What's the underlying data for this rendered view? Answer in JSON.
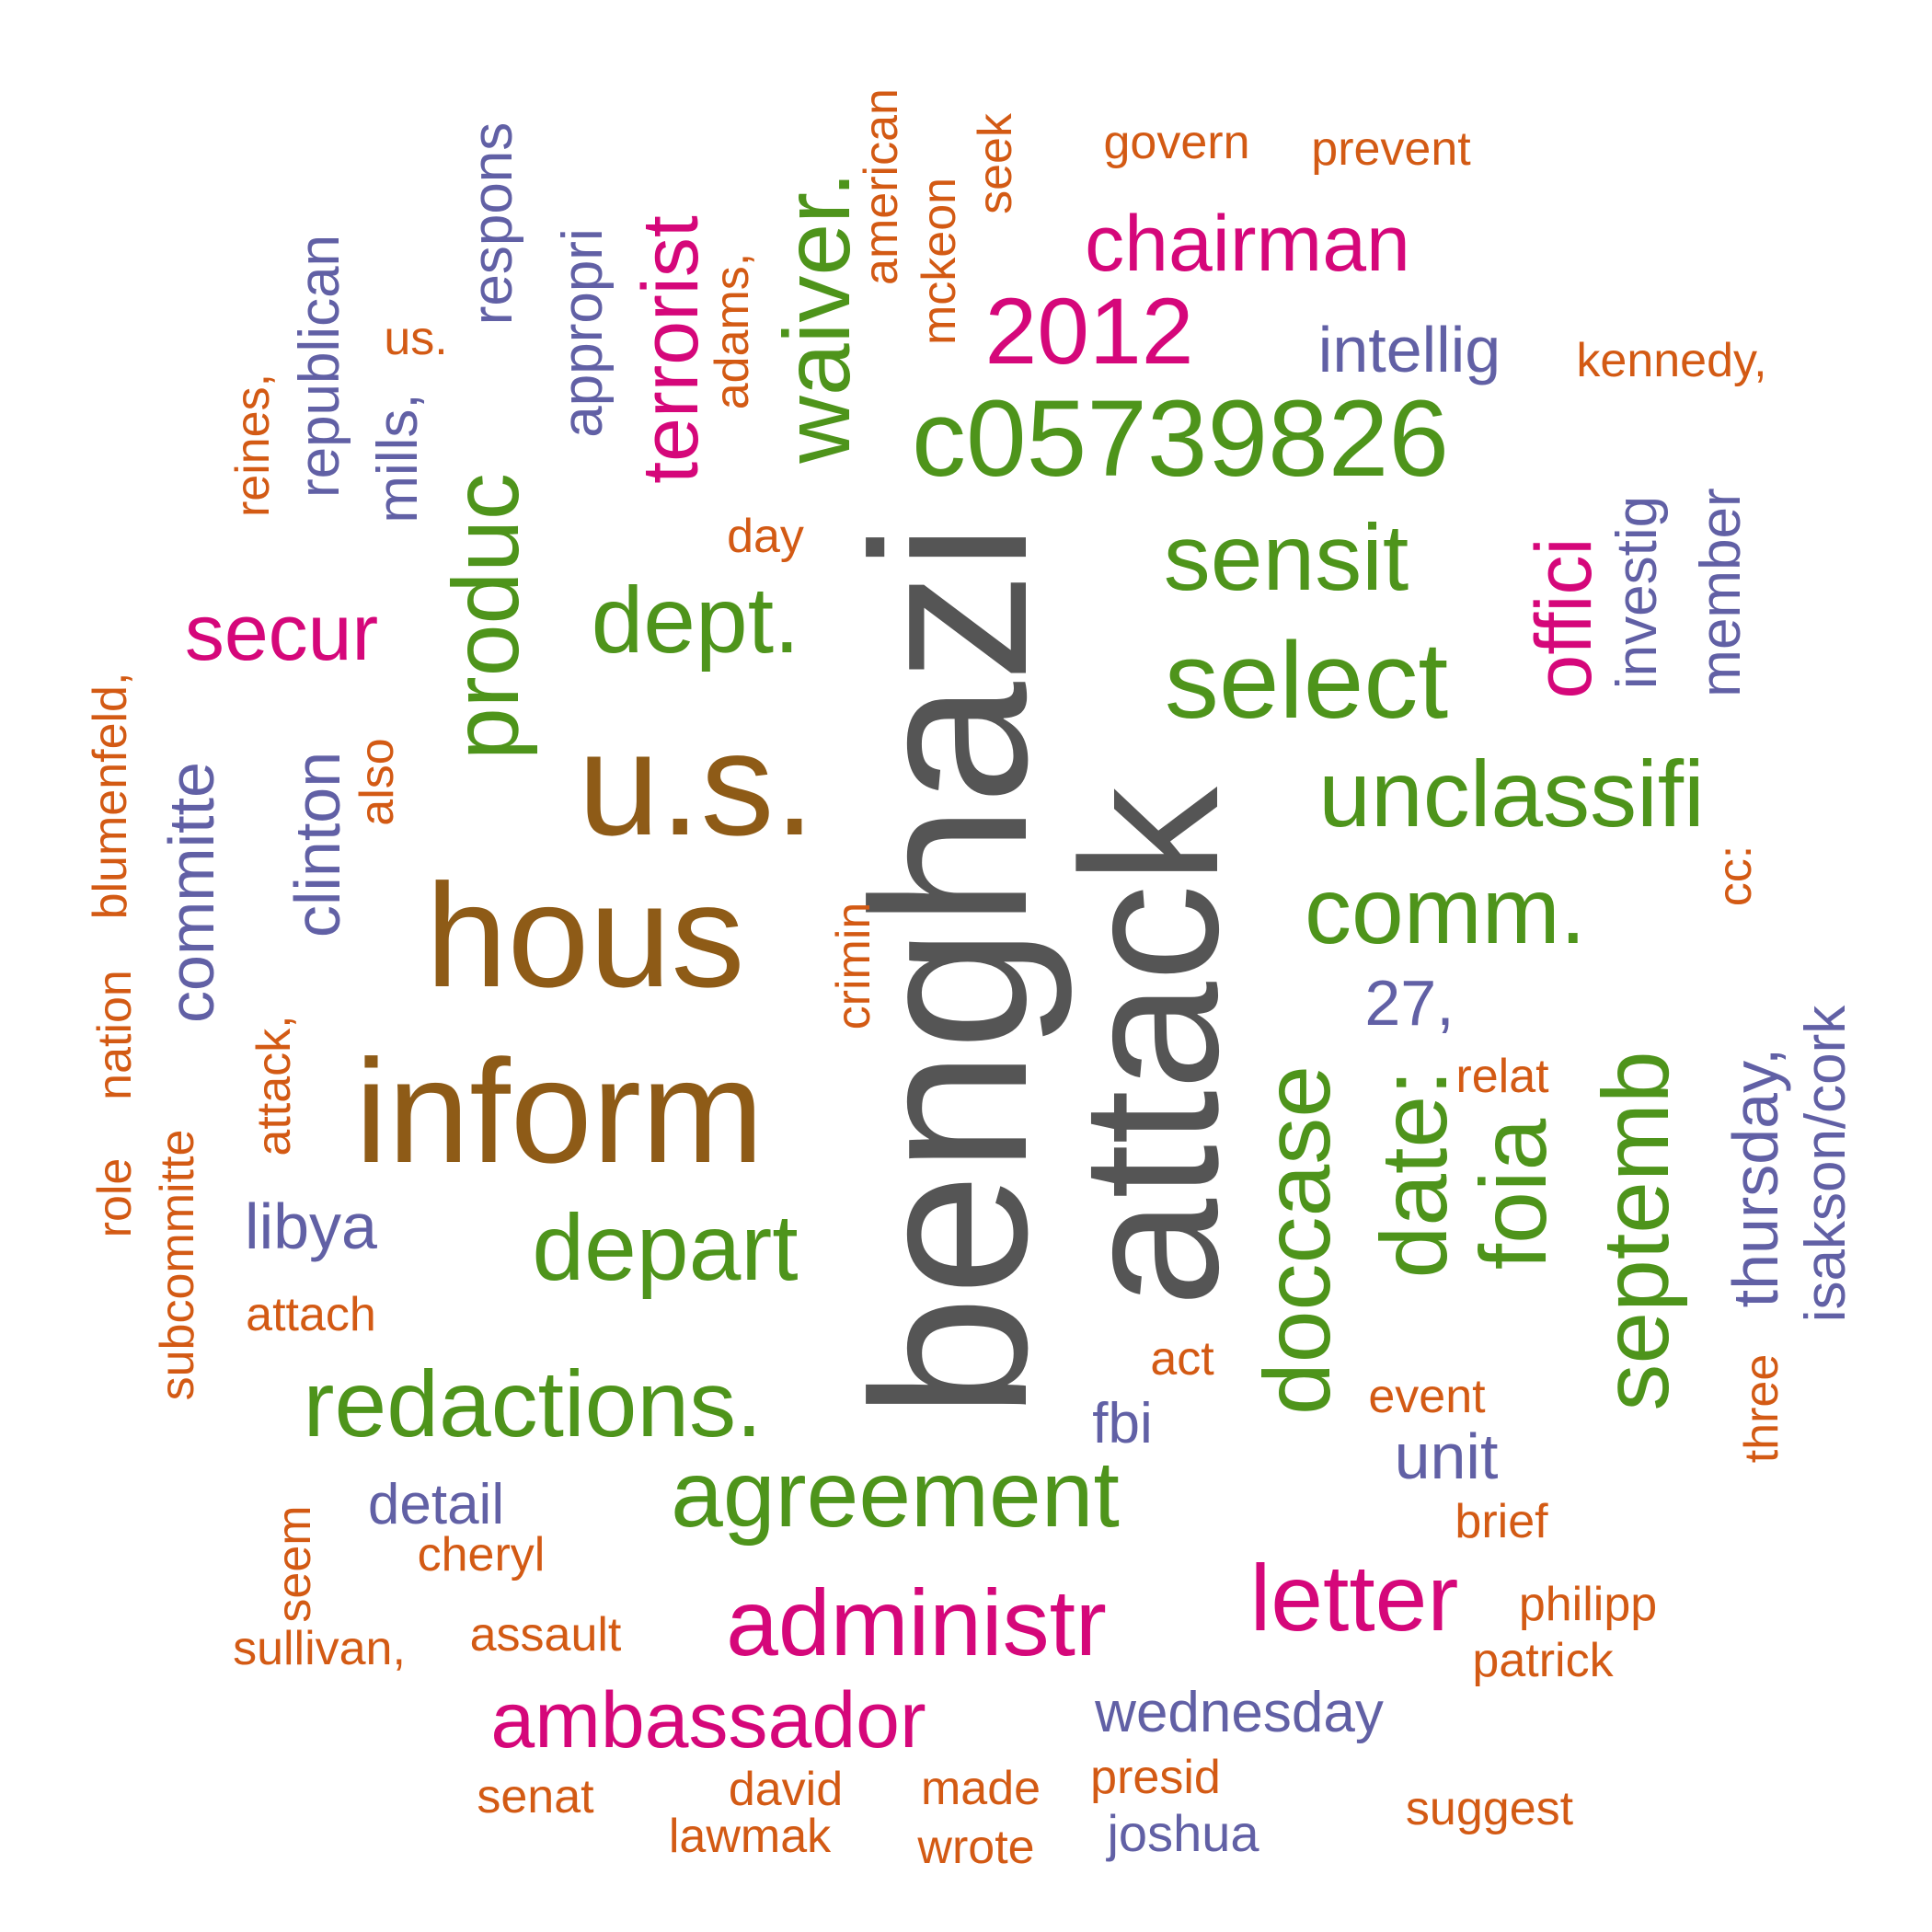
{
  "colors": {
    "gray": "#555555",
    "brown": "#8E5B17",
    "green": "#4E941B",
    "pink": "#D5077A",
    "purple": "#6160A5",
    "orange": "#D35A14"
  },
  "words": [
    {
      "text": "benghazi",
      "color": "gray"
    },
    {
      "text": "attack",
      "color": "gray"
    },
    {
      "text": "u.s.",
      "color": "brown"
    },
    {
      "text": "hous",
      "color": "brown"
    },
    {
      "text": "inform",
      "color": "brown"
    },
    {
      "text": "waiver.",
      "color": "green"
    },
    {
      "text": "c05739826",
      "color": "green"
    },
    {
      "text": "sensit",
      "color": "green"
    },
    {
      "text": "select",
      "color": "green"
    },
    {
      "text": "unclassifi",
      "color": "green"
    },
    {
      "text": "comm.",
      "color": "green"
    },
    {
      "text": "produc",
      "color": "green"
    },
    {
      "text": "dept.",
      "color": "green"
    },
    {
      "text": "depart",
      "color": "green"
    },
    {
      "text": "redactions.",
      "color": "green"
    },
    {
      "text": "agreement",
      "color": "green"
    },
    {
      "text": "doccase",
      "color": "green"
    },
    {
      "text": "date:",
      "color": "green"
    },
    {
      "text": "foia",
      "color": "green"
    },
    {
      "text": "septemb",
      "color": "green"
    },
    {
      "text": "terrorist",
      "color": "pink"
    },
    {
      "text": "chairman",
      "color": "pink"
    },
    {
      "text": "2012",
      "color": "pink"
    },
    {
      "text": "secur",
      "color": "pink"
    },
    {
      "text": "offici",
      "color": "pink"
    },
    {
      "text": "administr",
      "color": "pink"
    },
    {
      "text": "letter",
      "color": "pink"
    },
    {
      "text": "ambassador",
      "color": "pink"
    },
    {
      "text": "intellig",
      "color": "purple"
    },
    {
      "text": "respons",
      "color": "purple"
    },
    {
      "text": "republican",
      "color": "purple"
    },
    {
      "text": "mills,",
      "color": "purple"
    },
    {
      "text": "appropri",
      "color": "purple"
    },
    {
      "text": "investig",
      "color": "purple"
    },
    {
      "text": "member",
      "color": "purple"
    },
    {
      "text": "committe",
      "color": "purple"
    },
    {
      "text": "clinton",
      "color": "purple"
    },
    {
      "text": "27,",
      "color": "purple"
    },
    {
      "text": "thursday,",
      "color": "purple"
    },
    {
      "text": "isakson/cork",
      "color": "purple"
    },
    {
      "text": "libya",
      "color": "purple"
    },
    {
      "text": "unit",
      "color": "purple"
    },
    {
      "text": "fbi",
      "color": "purple"
    },
    {
      "text": "detail",
      "color": "purple"
    },
    {
      "text": "wednesday",
      "color": "purple"
    },
    {
      "text": "joshua",
      "color": "purple"
    },
    {
      "text": "govern",
      "color": "orange"
    },
    {
      "text": "prevent",
      "color": "orange"
    },
    {
      "text": "seek",
      "color": "orange"
    },
    {
      "text": "mckeon",
      "color": "orange"
    },
    {
      "text": "american",
      "color": "orange"
    },
    {
      "text": "adams,",
      "color": "orange"
    },
    {
      "text": "us.",
      "color": "orange"
    },
    {
      "text": "reines,",
      "color": "orange"
    },
    {
      "text": "kennedy,",
      "color": "orange"
    },
    {
      "text": "day",
      "color": "orange"
    },
    {
      "text": "blumenfeld,",
      "color": "orange"
    },
    {
      "text": "also",
      "color": "orange"
    },
    {
      "text": "crimin",
      "color": "orange"
    },
    {
      "text": "cc:",
      "color": "orange"
    },
    {
      "text": "nation",
      "color": "orange"
    },
    {
      "text": "role",
      "color": "orange"
    },
    {
      "text": "attack,",
      "color": "orange"
    },
    {
      "text": "subcommitte",
      "color": "orange"
    },
    {
      "text": "relat",
      "color": "orange"
    },
    {
      "text": "attach",
      "color": "orange"
    },
    {
      "text": "act",
      "color": "orange"
    },
    {
      "text": "event",
      "color": "orange"
    },
    {
      "text": "three",
      "color": "orange"
    },
    {
      "text": "seem",
      "color": "orange"
    },
    {
      "text": "brief",
      "color": "orange"
    },
    {
      "text": "cheryl",
      "color": "orange"
    },
    {
      "text": "philipp",
      "color": "orange"
    },
    {
      "text": "sullivan,",
      "color": "orange"
    },
    {
      "text": "assault",
      "color": "orange"
    },
    {
      "text": "patrick",
      "color": "orange"
    },
    {
      "text": "senat",
      "color": "orange"
    },
    {
      "text": "david",
      "color": "orange"
    },
    {
      "text": "made",
      "color": "orange"
    },
    {
      "text": "presid",
      "color": "orange"
    },
    {
      "text": "suggest",
      "color": "orange"
    },
    {
      "text": "lawmak",
      "color": "orange"
    },
    {
      "text": "wrote",
      "color": "orange"
    }
  ]
}
